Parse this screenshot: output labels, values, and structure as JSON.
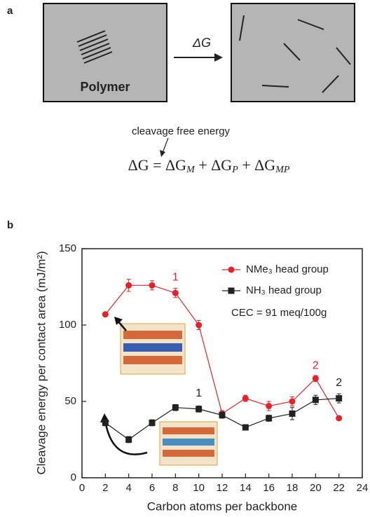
{
  "panel_a": {
    "label": "a",
    "box_label": "Polymer",
    "arrow_label": "ΔG",
    "note": "cleavage free energy",
    "equation": [
      "ΔG = ΔG",
      "M",
      " + ΔG",
      "P",
      " + ΔG",
      "MP"
    ]
  },
  "chart_data": {
    "type": "line",
    "panel_label": "b",
    "x_label": "Carbon atoms per backbone",
    "y_label": "Cleavage energy per contact area (mJ/m²)",
    "x": [
      2,
      4,
      6,
      8,
      10,
      12,
      14,
      16,
      18,
      20,
      22
    ],
    "series": [
      {
        "name": "NMe₃ head group",
        "color": "#e8202a",
        "marker": "circle",
        "values": [
          107,
          126,
          126,
          121,
          100,
          42,
          52,
          47,
          50,
          65,
          39
        ],
        "errors": [
          1,
          4,
          3,
          3,
          3,
          2,
          2,
          3,
          3,
          2,
          1
        ]
      },
      {
        "name": "NH₃ head group",
        "color": "#222222",
        "marker": "square",
        "values": [
          36,
          25,
          36,
          46,
          45,
          41,
          33,
          39,
          42,
          51,
          52
        ],
        "errors": [
          2,
          2,
          2,
          2,
          2,
          2,
          1,
          2,
          4,
          3,
          3
        ]
      }
    ],
    "annotations": [
      {
        "text": "1",
        "color": "#e8202a"
      },
      {
        "text": "2",
        "color": "#e8202a"
      },
      {
        "text": "1",
        "color": "#222222"
      },
      {
        "text": "2",
        "color": "#222222"
      },
      {
        "text": "CEC = 91 meq/100g",
        "color": "#222222"
      }
    ],
    "xlim": [
      0,
      24
    ],
    "xticks": [
      0,
      2,
      4,
      6,
      8,
      10,
      12,
      14,
      16,
      18,
      20,
      22,
      24
    ],
    "ylim": [
      0,
      150
    ],
    "yticks": [
      0,
      50,
      100,
      150
    ],
    "grid": false,
    "legend": "upper right"
  }
}
